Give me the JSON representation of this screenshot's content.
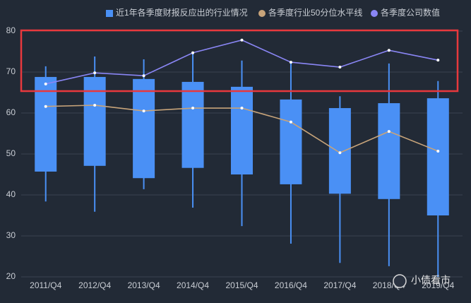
{
  "chart_data": {
    "type": "boxplot",
    "categories": [
      "2011/Q4",
      "2012/Q4",
      "2013/Q4",
      "2014/Q4",
      "2015/Q4",
      "2016/Q4",
      "2017/Q4",
      "2018/Q4",
      "2019/Q4"
    ],
    "ylim": [
      20,
      80
    ],
    "yticks": [
      20,
      30,
      40,
      50,
      60,
      70,
      80
    ],
    "grid": true,
    "series": [
      {
        "name": "近1年各季度财报反应出的行业情况",
        "color": "#4a90f5",
        "type": "box",
        "low": [
          38.4,
          35.9,
          41.4,
          36.9,
          32.4,
          28.1,
          23.4,
          22.6,
          20
        ],
        "q1": [
          45.7,
          47.1,
          44.1,
          46.6,
          45.0,
          42.6,
          40.3,
          39.0,
          35.0
        ],
        "q3": [
          68.8,
          68.8,
          68.3,
          67.6,
          66.4,
          63.3,
          61.2,
          62.4,
          63.6
        ],
        "high": [
          71.4,
          73.8,
          73.1,
          74.5,
          72.8,
          72.4,
          64.1,
          72.1,
          67.8
        ]
      },
      {
        "name": "各季度行业50分位水平线",
        "color": "#c8a47a",
        "type": "line",
        "values": [
          61.6,
          61.9,
          60.5,
          61.2,
          61.2,
          57.8,
          50.3,
          55.5,
          50.7
        ]
      },
      {
        "name": "各季度公司数值",
        "color": "#8a86f5",
        "type": "line",
        "values": [
          67.1,
          69.8,
          69.1,
          74.7,
          77.8,
          72.4,
          71.2,
          75.3,
          72.9
        ]
      }
    ],
    "watermark": "小债看市"
  }
}
